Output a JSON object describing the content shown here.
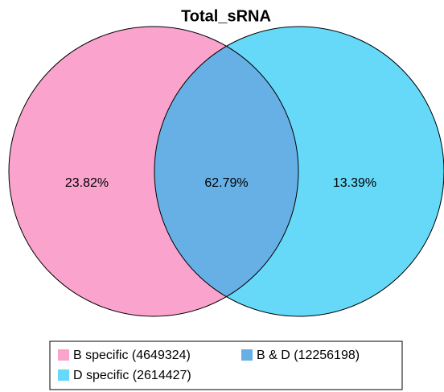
{
  "chart_data": {
    "type": "venn",
    "title": "Total_sRNA",
    "categories": [
      "B specific (4649324)",
      "B & D (12256198)",
      "D specific (2614427)"
    ],
    "values": [
      23.82,
      62.79,
      13.39
    ],
    "value_labels": [
      "23.82%",
      "62.79%",
      "13.39%"
    ],
    "colors": [
      "#f9a3cd",
      "#67b0e6",
      "#66d9f8"
    ]
  }
}
